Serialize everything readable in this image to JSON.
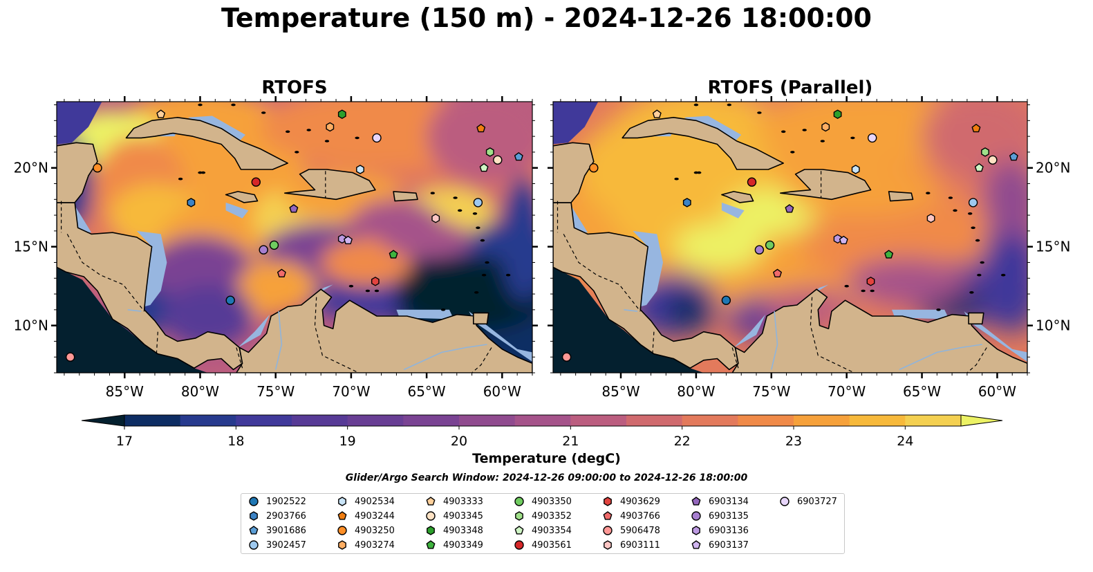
{
  "title": "Temperature (150 m) - 2024-12-26 18:00:00",
  "panels": [
    {
      "title": "RTOFS"
    },
    {
      "title": "RTOFS (Parallel)"
    }
  ],
  "map": {
    "lon_range": [
      -89.5,
      -58.0
    ],
    "lat_range": [
      7.0,
      24.2
    ],
    "lon_ticks": [
      {
        "v": -85,
        "label": "85°W"
      },
      {
        "v": -80,
        "label": "80°W"
      },
      {
        "v": -75,
        "label": "75°W"
      },
      {
        "v": -70,
        "label": "70°W"
      },
      {
        "v": -65,
        "label": "65°W"
      },
      {
        "v": -60,
        "label": "60°W"
      }
    ],
    "lat_ticks": [
      {
        "v": 10,
        "label": "10°N"
      },
      {
        "v": 15,
        "label": "15°N"
      },
      {
        "v": 20,
        "label": "20°N"
      }
    ],
    "land_color": "#d2b48c",
    "shelf_color": "#97b6e0"
  },
  "colorbar": {
    "label": "Temperature (degC)",
    "min": 17,
    "max": 24.5,
    "ticks": [
      "17",
      "18",
      "19",
      "20",
      "21",
      "22",
      "23",
      "24"
    ],
    "colors": [
      "#04202f",
      "#0d2d63",
      "#273a8e",
      "#40399a",
      "#573a96",
      "#683e94",
      "#7a4393",
      "#904b8f",
      "#a5538a",
      "#bb5d7f",
      "#d06a6e",
      "#e37a5c",
      "#f08a48",
      "#f6a13b",
      "#f7b93b",
      "#f4d051",
      "#ecf265"
    ]
  },
  "search_window": "Glider/Argo Search Window: 2024-12-26 09:00:00 to 2024-12-26 18:00:00",
  "legend": [
    {
      "id": "1902522",
      "shape": "circle",
      "color": "#1f77b4"
    },
    {
      "id": "2903766",
      "shape": "hexagon",
      "color": "#3c83c5"
    },
    {
      "id": "3901686",
      "shape": "pentagon",
      "color": "#5b9ed6"
    },
    {
      "id": "3902457",
      "shape": "circle",
      "color": "#9ec9ef"
    },
    {
      "id": "4902534",
      "shape": "hexagon",
      "color": "#c9e4f7"
    },
    {
      "id": "4903244",
      "shape": "pentagon",
      "color": "#f07d10"
    },
    {
      "id": "4903250",
      "shape": "circle",
      "color": "#ff8f27"
    },
    {
      "id": "4903274",
      "shape": "hexagon",
      "color": "#ffae63"
    },
    {
      "id": "4903333",
      "shape": "pentagon",
      "color": "#ffd09b"
    },
    {
      "id": "4903345",
      "shape": "circle",
      "color": "#ffe2c4"
    },
    {
      "id": "4903348",
      "shape": "hexagon",
      "color": "#2ca02c"
    },
    {
      "id": "4903349",
      "shape": "pentagon",
      "color": "#3fb33f"
    },
    {
      "id": "4903350",
      "shape": "circle",
      "color": "#70cc60"
    },
    {
      "id": "4903352",
      "shape": "hexagon",
      "color": "#a0e08a"
    },
    {
      "id": "4903354",
      "shape": "pentagon",
      "color": "#cff5c5"
    },
    {
      "id": "4903561",
      "shape": "circle",
      "color": "#d62728"
    },
    {
      "id": "4903629",
      "shape": "hexagon",
      "color": "#e2443f"
    },
    {
      "id": "4903766",
      "shape": "pentagon",
      "color": "#f06b6b"
    },
    {
      "id": "5906478",
      "shape": "circle",
      "color": "#ff9896"
    },
    {
      "id": "6903111",
      "shape": "hexagon",
      "color": "#fcc6c4"
    },
    {
      "id": "6903134",
      "shape": "pentagon",
      "color": "#9467bd"
    },
    {
      "id": "6903135",
      "shape": "circle",
      "color": "#a77fd0"
    },
    {
      "id": "6903136",
      "shape": "hexagon",
      "color": "#bd9ae2"
    },
    {
      "id": "6903137",
      "shape": "pentagon",
      "color": "#d0b5f0"
    },
    {
      "id": "6903727",
      "shape": "circle",
      "color": "#e8d6fb"
    }
  ],
  "markers": [
    {
      "id": "1902522",
      "lon": -78.0,
      "lat": 11.6
    },
    {
      "id": "2903766",
      "lon": -80.6,
      "lat": 17.8
    },
    {
      "id": "3901686",
      "lon": -58.9,
      "lat": 20.7
    },
    {
      "id": "3902457",
      "lon": -61.6,
      "lat": 17.8
    },
    {
      "id": "4902534",
      "lon": -69.4,
      "lat": 19.9
    },
    {
      "id": "4903244",
      "lon": -61.4,
      "lat": 22.5
    },
    {
      "id": "4903250",
      "lon": -86.8,
      "lat": 20.0
    },
    {
      "id": "4903274",
      "lon": -71.4,
      "lat": 22.6
    },
    {
      "id": "4903333",
      "lon": -82.6,
      "lat": 23.4
    },
    {
      "id": "4903345",
      "lon": -60.3,
      "lat": 20.5
    },
    {
      "id": "4903348",
      "lon": -70.6,
      "lat": 23.4
    },
    {
      "id": "4903349",
      "lon": -67.2,
      "lat": 14.5
    },
    {
      "id": "4903350",
      "lon": -75.1,
      "lat": 15.1
    },
    {
      "id": "4903352",
      "lon": -60.8,
      "lat": 21.0
    },
    {
      "id": "4903354",
      "lon": -61.2,
      "lat": 20.0
    },
    {
      "id": "4903561",
      "lon": -76.3,
      "lat": 19.1
    },
    {
      "id": "4903629",
      "lon": -68.4,
      "lat": 12.8
    },
    {
      "id": "4903766",
      "lon": -74.6,
      "lat": 13.3
    },
    {
      "id": "5906478",
      "lon": -88.6,
      "lat": 8.0
    },
    {
      "id": "6903111",
      "lon": -64.4,
      "lat": 16.8
    },
    {
      "id": "6903134",
      "lon": -73.8,
      "lat": 17.4
    },
    {
      "id": "6903135",
      "lon": -75.8,
      "lat": 14.8
    },
    {
      "id": "6903136",
      "lon": -70.6,
      "lat": 15.5
    },
    {
      "id": "6903137",
      "lon": -70.2,
      "lat": 15.4
    },
    {
      "id": "6903727",
      "lon": -68.3,
      "lat": 21.9
    }
  ]
}
